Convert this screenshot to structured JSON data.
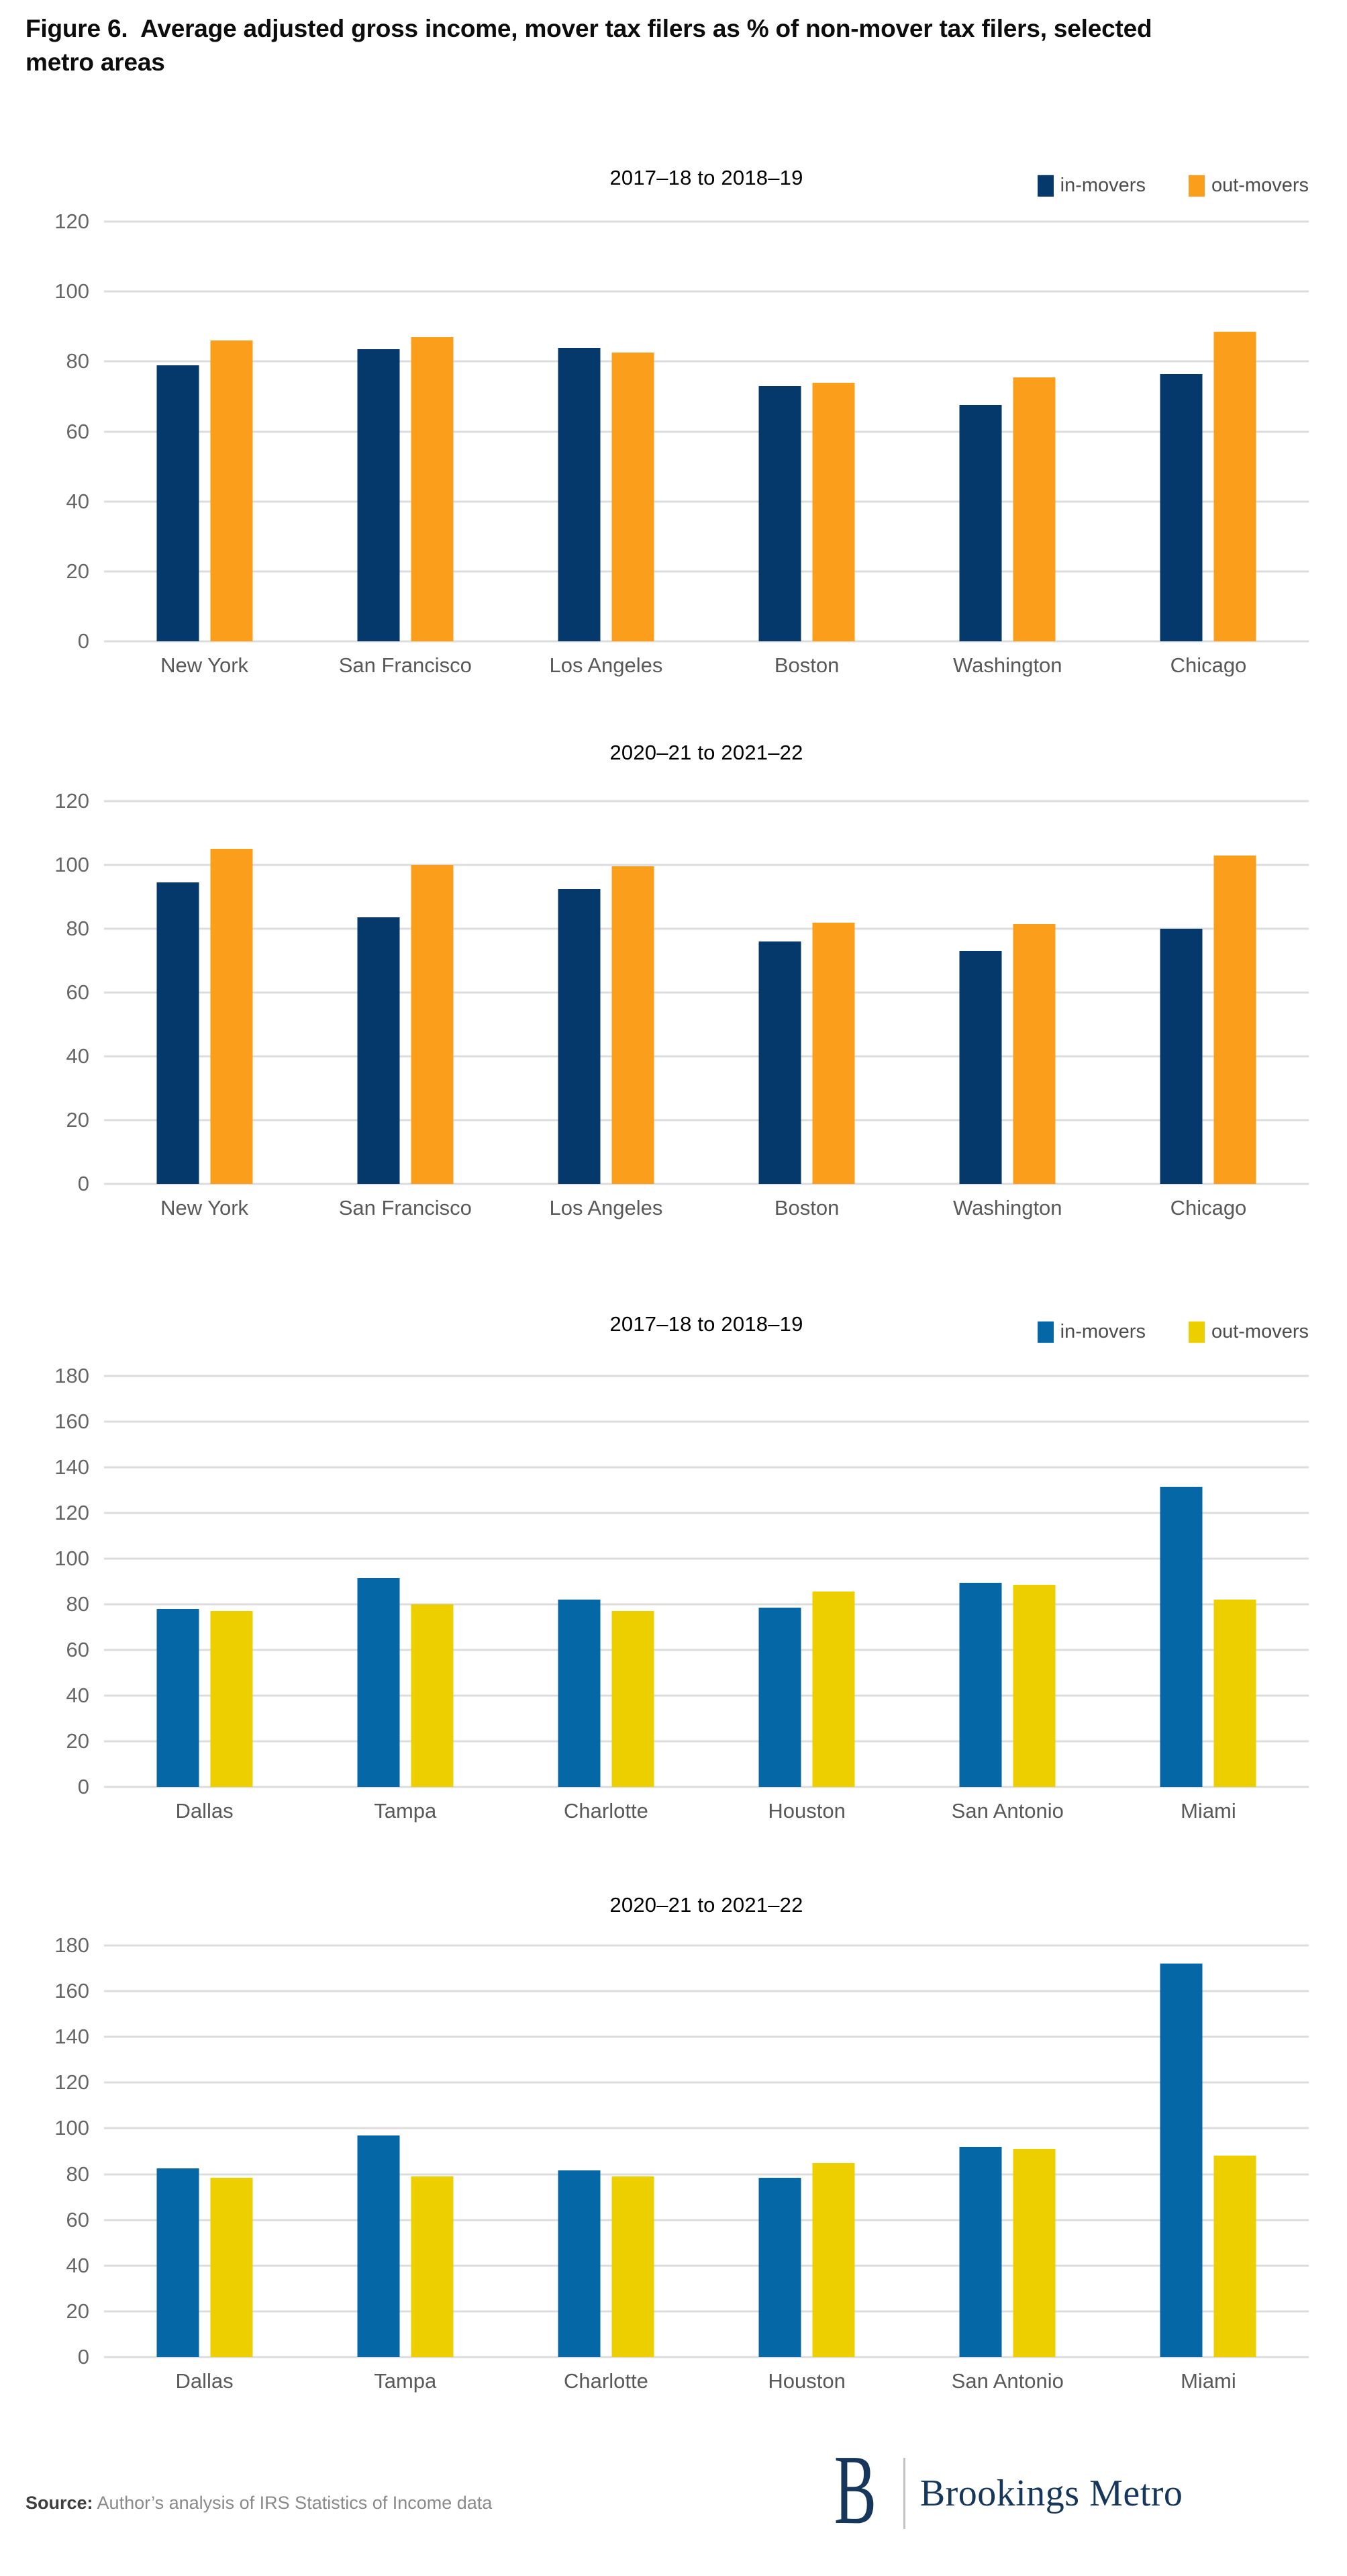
{
  "figure": {
    "title": "Figure 6.  Average adjusted gross income, mover tax filers as % of non-mover tax filers, selected metro areas"
  },
  "colors": {
    "navy": "#05396b",
    "orange": "#fb9e1c",
    "blue": "#0667a7",
    "yellow": "#edcf00",
    "gridline": "#dcdcdc",
    "tick_text": "#666666",
    "category_text": "#595959",
    "logo_navy": "#16365c"
  },
  "chart_data": [
    {
      "type": "bar",
      "title": "2017–18 to 2018–19",
      "categories": [
        "New York",
        "San Francisco",
        "Los Angeles",
        "Boston",
        "Washington",
        "Chicago"
      ],
      "series": [
        {
          "name": "in-movers",
          "color": "#05396b",
          "values": [
            79,
            83.5,
            84,
            73,
            67.5,
            76.5
          ]
        },
        {
          "name": "out-movers",
          "color": "#fb9e1c",
          "values": [
            86,
            87,
            82.5,
            74,
            75.5,
            88.5
          ]
        }
      ],
      "ylim": [
        0,
        120
      ],
      "ytick_step": 20,
      "grid": true,
      "legend_visible": true,
      "legend_position": "top-right"
    },
    {
      "type": "bar",
      "title": "2020–21 to 2021–22",
      "categories": [
        "New York",
        "San Francisco",
        "Los Angeles",
        "Boston",
        "Washington",
        "Chicago"
      ],
      "series": [
        {
          "name": "in-movers",
          "color": "#05396b",
          "values": [
            94.5,
            83.5,
            92.5,
            76,
            73,
            80
          ]
        },
        {
          "name": "out-movers",
          "color": "#fb9e1c",
          "values": [
            105,
            100,
            99.5,
            82,
            81.5,
            103
          ]
        }
      ],
      "ylim": [
        0,
        120
      ],
      "ytick_step": 20,
      "grid": true,
      "legend_visible": false,
      "legend_position": null
    },
    {
      "type": "bar",
      "title": "2017–18 to 2018–19",
      "categories": [
        "Dallas",
        "Tampa",
        "Charlotte",
        "Houston",
        "San Antonio",
        "Miami"
      ],
      "series": [
        {
          "name": "in-movers",
          "color": "#0667a7",
          "values": [
            78,
            91.5,
            82,
            78.5,
            89.5,
            131.5
          ]
        },
        {
          "name": "out-movers",
          "color": "#edcf00",
          "values": [
            77,
            80,
            77,
            85.5,
            88.5,
            82
          ]
        }
      ],
      "ylim": [
        0,
        180
      ],
      "ytick_step": 20,
      "grid": true,
      "legend_visible": true,
      "legend_position": "top-right"
    },
    {
      "type": "bar",
      "title": "2020–21 to 2021–22",
      "categories": [
        "Dallas",
        "Tampa",
        "Charlotte",
        "Houston",
        "San Antonio",
        "Miami"
      ],
      "series": [
        {
          "name": "in-movers",
          "color": "#0667a7",
          "values": [
            82.5,
            97,
            81.5,
            78.5,
            92,
            172
          ]
        },
        {
          "name": "out-movers",
          "color": "#edcf00",
          "values": [
            78.5,
            79,
            79,
            85,
            91,
            88
          ]
        }
      ],
      "ylim": [
        0,
        180
      ],
      "ytick_step": 20,
      "grid": true,
      "legend_visible": false,
      "legend_position": null
    }
  ],
  "footer": {
    "source_label": "Source:",
    "source_text": " Author’s analysis of IRS Statistics of Income data",
    "logo_b": "B",
    "logo_text": "Brookings Metro"
  }
}
